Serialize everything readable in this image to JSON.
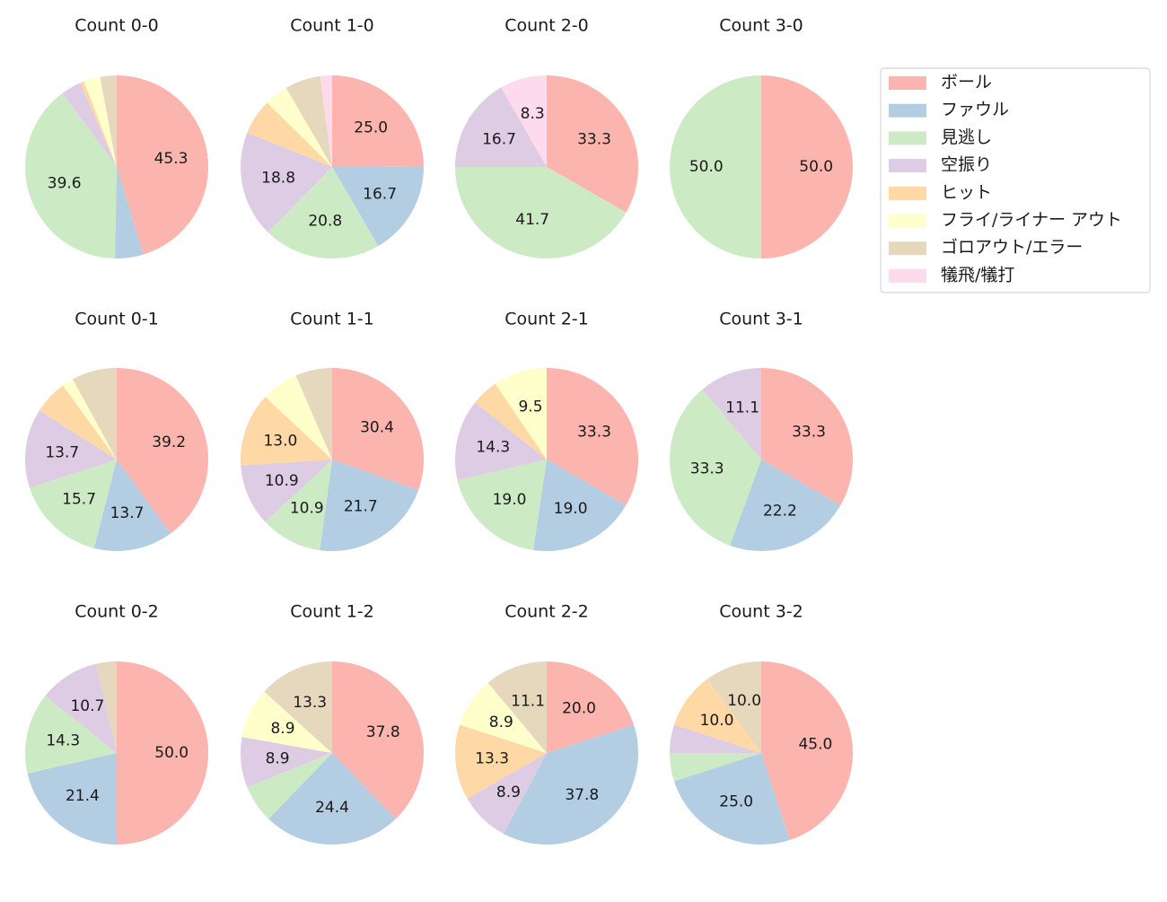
{
  "chart_data": {
    "type": "pie",
    "legend": {
      "position": "top-right",
      "entries": [
        {
          "name": "ボール",
          "color": "#FBB4AE"
        },
        {
          "name": "ファウル",
          "color": "#B3CDE3"
        },
        {
          "name": "見逃し",
          "color": "#CCEBC5"
        },
        {
          "name": "空振り",
          "color": "#DECBE4"
        },
        {
          "name": "ヒット",
          "color": "#FED9A6"
        },
        {
          "name": "フライ/ライナー アウト",
          "color": "#FFFFCC"
        },
        {
          "name": "ゴロアウト/エラー",
          "color": "#E5D8BD"
        },
        {
          "name": "犠飛/犠打",
          "color": "#FDDAEC"
        }
      ]
    },
    "pies": [
      {
        "title": "Count 0-0",
        "values": [
          45.3,
          5.0,
          39.6,
          3.6,
          0.7,
          2.9,
          2.9,
          0.0
        ],
        "labels": [
          "45.3",
          "",
          "39.6",
          "",
          "",
          "",
          "",
          ""
        ]
      },
      {
        "title": "Count 1-0",
        "values": [
          25.0,
          16.7,
          20.8,
          18.8,
          6.3,
          4.2,
          6.3,
          2.1
        ],
        "labels": [
          "25.0",
          "16.7",
          "20.8",
          "18.8",
          "",
          "",
          "",
          ""
        ]
      },
      {
        "title": "Count 2-0",
        "values": [
          33.3,
          0.0,
          41.7,
          16.7,
          0.0,
          0.0,
          0.0,
          8.3
        ],
        "labels": [
          "33.3",
          "",
          "41.7",
          "16.7",
          "",
          "",
          "",
          "8.3"
        ]
      },
      {
        "title": "Count 3-0",
        "values": [
          50.0,
          0.0,
          50.0,
          0.0,
          0.0,
          0.0,
          0.0,
          0.0
        ],
        "labels": [
          "50.0",
          "",
          "50.0",
          "",
          "",
          "",
          "",
          ""
        ]
      },
      {
        "title": "Count 0-1",
        "values": [
          39.2,
          13.7,
          15.7,
          13.7,
          5.9,
          2.0,
          7.8,
          0.0
        ],
        "labels": [
          "39.2",
          "13.7",
          "15.7",
          "13.7",
          "",
          "",
          "",
          ""
        ]
      },
      {
        "title": "Count 1-1",
        "values": [
          30.4,
          21.7,
          10.9,
          10.9,
          13.0,
          6.5,
          6.5,
          0.0
        ],
        "labels": [
          "30.4",
          "21.7",
          "10.9",
          "10.9",
          "13.0",
          "",
          "",
          ""
        ]
      },
      {
        "title": "Count 2-1",
        "values": [
          33.3,
          19.0,
          19.0,
          14.3,
          4.8,
          9.5,
          0.0,
          0.0
        ],
        "labels": [
          "33.3",
          "19.0",
          "19.0",
          "14.3",
          "",
          "9.5",
          "",
          ""
        ]
      },
      {
        "title": "Count 3-1",
        "values": [
          33.3,
          22.2,
          33.3,
          11.1,
          0.0,
          0.0,
          0.0,
          0.0
        ],
        "labels": [
          "33.3",
          "22.2",
          "33.3",
          "11.1",
          "",
          "",
          "",
          ""
        ]
      },
      {
        "title": "Count 0-2",
        "values": [
          50.0,
          21.4,
          14.3,
          10.7,
          0.0,
          0.0,
          3.6,
          0.0
        ],
        "labels": [
          "50.0",
          "21.4",
          "14.3",
          "10.7",
          "",
          "",
          "",
          ""
        ]
      },
      {
        "title": "Count 1-2",
        "values": [
          37.8,
          24.4,
          6.7,
          8.9,
          0.0,
          8.9,
          13.3,
          0.0
        ],
        "labels": [
          "37.8",
          "24.4",
          "",
          "8.9",
          "",
          "8.9",
          "13.3",
          ""
        ]
      },
      {
        "title": "Count 2-2",
        "values": [
          20.0,
          37.8,
          0.0,
          8.9,
          13.3,
          8.9,
          11.1,
          0.0
        ],
        "labels": [
          "20.0",
          "37.8",
          "",
          "8.9",
          "13.3",
          "8.9",
          "11.1",
          ""
        ]
      },
      {
        "title": "Count 3-2",
        "values": [
          45.0,
          25.0,
          5.0,
          5.0,
          10.0,
          0.0,
          10.0,
          0.0
        ],
        "labels": [
          "45.0",
          "25.0",
          "",
          "",
          "10.0",
          "",
          "10.0",
          ""
        ]
      }
    ]
  }
}
